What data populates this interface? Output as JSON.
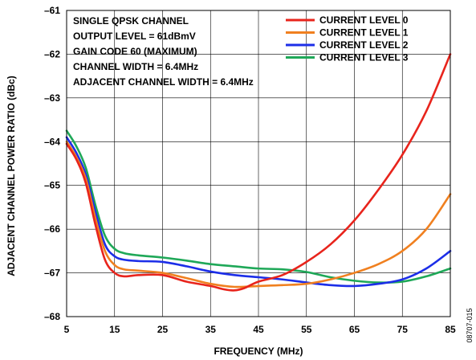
{
  "chart_data": {
    "type": "line",
    "xlabel": "FREQUENCY (MHz)",
    "ylabel": "ADJACENT CHANNEL POWER RATIO (dBc)",
    "xlim": [
      5,
      85
    ],
    "ylim": [
      -68,
      -61
    ],
    "x_ticks": [
      5,
      15,
      25,
      35,
      45,
      55,
      65,
      75,
      85
    ],
    "y_ticks": [
      -61,
      -62,
      -63,
      -64,
      -65,
      -66,
      -67,
      -68
    ],
    "x_tick_labels": [
      "5",
      "15",
      "25",
      "35",
      "45",
      "55",
      "65",
      "75",
      "85"
    ],
    "y_tick_labels": [
      "–61",
      "–62",
      "–63",
      "–64",
      "–65",
      "–66",
      "–67",
      "–68"
    ],
    "grid": true,
    "annotations": [
      "SINGLE QPSK CHANNEL",
      "OUTPUT LEVEL = 61dBmV",
      "GAIN CODE 60 (MAXIMUM)",
      "CHANNEL WIDTH = 6.4MHz",
      "ADJACENT CHANNEL WIDTH = 6.4MHz"
    ],
    "legend_position": "top-right",
    "figure_id": "08707-015",
    "series": [
      {
        "name": "CURRENT LEVEL 0",
        "color": "#e8241c",
        "points": [
          [
            5,
            -64.05
          ],
          [
            7,
            -64.4
          ],
          [
            9,
            -64.95
          ],
          [
            11,
            -65.9
          ],
          [
            13,
            -66.7
          ],
          [
            15,
            -67.0
          ],
          [
            17,
            -67.08
          ],
          [
            20,
            -67.05
          ],
          [
            25,
            -67.05
          ],
          [
            30,
            -67.2
          ],
          [
            35,
            -67.3
          ],
          [
            38,
            -67.38
          ],
          [
            40,
            -67.4
          ],
          [
            42,
            -67.35
          ],
          [
            45,
            -67.2
          ],
          [
            50,
            -67.05
          ],
          [
            55,
            -66.75
          ],
          [
            60,
            -66.35
          ],
          [
            65,
            -65.8
          ],
          [
            70,
            -65.1
          ],
          [
            75,
            -64.3
          ],
          [
            80,
            -63.3
          ],
          [
            85,
            -62.0
          ]
        ]
      },
      {
        "name": "CURRENT LEVEL 1",
        "color": "#f08020",
        "points": [
          [
            5,
            -64.0
          ],
          [
            7,
            -64.35
          ],
          [
            9,
            -64.85
          ],
          [
            11,
            -65.75
          ],
          [
            13,
            -66.5
          ],
          [
            15,
            -66.82
          ],
          [
            17,
            -66.92
          ],
          [
            20,
            -66.95
          ],
          [
            25,
            -67.0
          ],
          [
            30,
            -67.12
          ],
          [
            35,
            -67.25
          ],
          [
            40,
            -67.32
          ],
          [
            45,
            -67.3
          ],
          [
            50,
            -67.28
          ],
          [
            55,
            -67.25
          ],
          [
            60,
            -67.15
          ],
          [
            65,
            -67.0
          ],
          [
            70,
            -66.8
          ],
          [
            75,
            -66.5
          ],
          [
            80,
            -66.0
          ],
          [
            85,
            -65.2
          ]
        ]
      },
      {
        "name": "CURRENT LEVEL 2",
        "color": "#1c2ee8",
        "points": [
          [
            5,
            -63.9
          ],
          [
            7,
            -64.25
          ],
          [
            9,
            -64.75
          ],
          [
            11,
            -65.6
          ],
          [
            13,
            -66.35
          ],
          [
            15,
            -66.62
          ],
          [
            17,
            -66.7
          ],
          [
            20,
            -66.73
          ],
          [
            25,
            -66.75
          ],
          [
            30,
            -66.85
          ],
          [
            35,
            -66.97
          ],
          [
            40,
            -67.05
          ],
          [
            45,
            -67.1
          ],
          [
            50,
            -67.15
          ],
          [
            55,
            -67.22
          ],
          [
            60,
            -67.28
          ],
          [
            65,
            -67.3
          ],
          [
            70,
            -67.25
          ],
          [
            75,
            -67.15
          ],
          [
            80,
            -66.9
          ],
          [
            85,
            -66.5
          ]
        ]
      },
      {
        "name": "CURRENT LEVEL 3",
        "color": "#1fa858",
        "points": [
          [
            5,
            -63.75
          ],
          [
            7,
            -64.1
          ],
          [
            9,
            -64.6
          ],
          [
            11,
            -65.45
          ],
          [
            13,
            -66.15
          ],
          [
            15,
            -66.45
          ],
          [
            17,
            -66.55
          ],
          [
            20,
            -66.6
          ],
          [
            25,
            -66.65
          ],
          [
            30,
            -66.72
          ],
          [
            35,
            -66.8
          ],
          [
            40,
            -66.85
          ],
          [
            45,
            -66.9
          ],
          [
            50,
            -66.92
          ],
          [
            55,
            -66.98
          ],
          [
            60,
            -67.1
          ],
          [
            65,
            -67.18
          ],
          [
            70,
            -67.22
          ],
          [
            75,
            -67.2
          ],
          [
            80,
            -67.08
          ],
          [
            85,
            -66.9
          ]
        ]
      }
    ]
  }
}
